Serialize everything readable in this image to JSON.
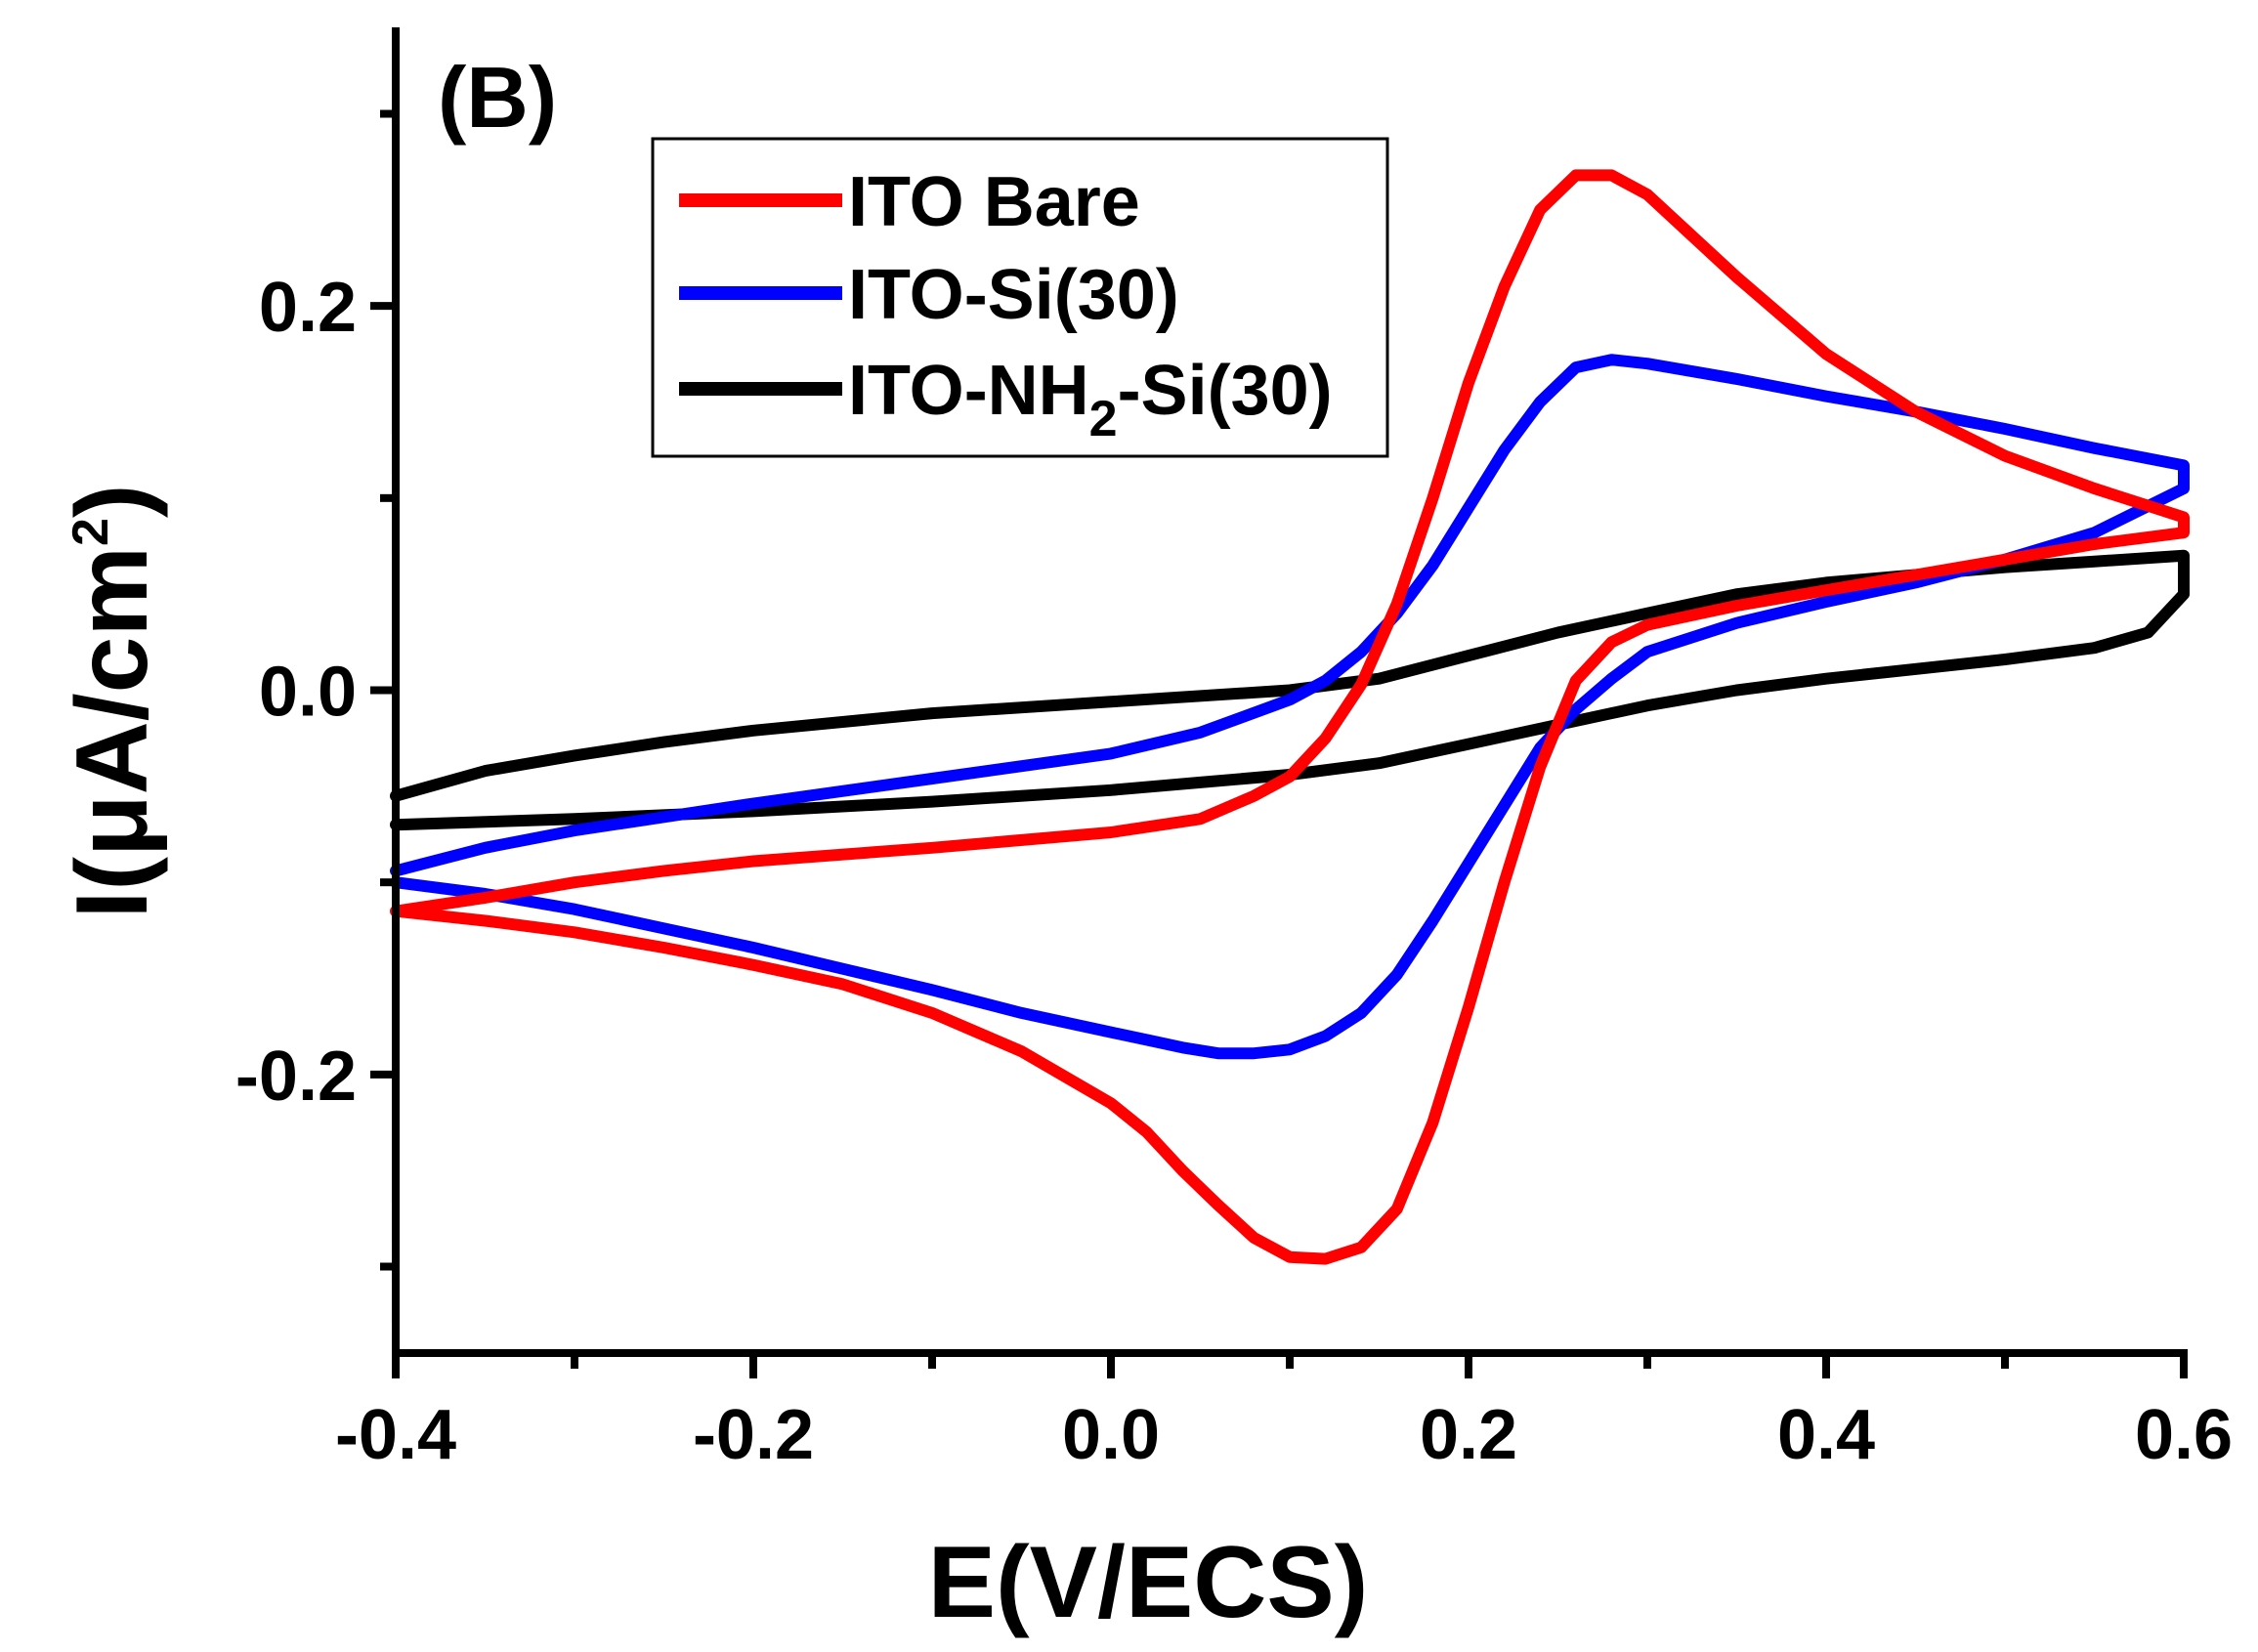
{
  "chart_data": {
    "type": "line",
    "panel_label": "(B)",
    "xlabel": "E(V/ECS)",
    "ylabel": {
      "prefix": "I(μA/cm",
      "superscript": "2",
      "suffix": ")"
    },
    "xlim": [
      -0.4,
      0.6
    ],
    "ylim": [
      -0.345,
      0.345
    ],
    "x_ticks": [
      {
        "value": -0.4,
        "label": "-0.4"
      },
      {
        "value": -0.2,
        "label": "-0.2"
      },
      {
        "value": 0.0,
        "label": "0.0"
      },
      {
        "value": 0.2,
        "label": "0.2"
      },
      {
        "value": 0.4,
        "label": "0.4"
      },
      {
        "value": 0.6,
        "label": "0.6"
      }
    ],
    "x_minor_ticks": [
      -0.3,
      -0.1,
      0.1,
      0.3,
      0.5
    ],
    "y_ticks": [
      {
        "value": -0.2,
        "label": "-0.2"
      },
      {
        "value": 0.0,
        "label": "0.0"
      },
      {
        "value": 0.2,
        "label": "0.2"
      }
    ],
    "y_minor_ticks": [
      -0.3,
      -0.1,
      0.1,
      0.3
    ],
    "grid": false,
    "legend_position": "top-center",
    "series": [
      {
        "name": "ITO Bare",
        "legend_label": {
          "prefix": "ITO Bare",
          "subscript": "",
          "suffix": ""
        },
        "color": "#ff0000",
        "points": [
          [
            -0.4,
            -0.115
          ],
          [
            -0.35,
            -0.108
          ],
          [
            -0.3,
            -0.1
          ],
          [
            -0.25,
            -0.094
          ],
          [
            -0.2,
            -0.089
          ],
          [
            -0.1,
            -0.082
          ],
          [
            0.0,
            -0.074
          ],
          [
            0.05,
            -0.067
          ],
          [
            0.08,
            -0.055
          ],
          [
            0.1,
            -0.045
          ],
          [
            0.12,
            -0.025
          ],
          [
            0.14,
            0.003
          ],
          [
            0.16,
            0.045
          ],
          [
            0.18,
            0.1
          ],
          [
            0.2,
            0.16
          ],
          [
            0.22,
            0.21
          ],
          [
            0.24,
            0.25
          ],
          [
            0.26,
            0.268
          ],
          [
            0.28,
            0.268
          ],
          [
            0.3,
            0.258
          ],
          [
            0.35,
            0.215
          ],
          [
            0.4,
            0.175
          ],
          [
            0.45,
            0.145
          ],
          [
            0.5,
            0.122
          ],
          [
            0.55,
            0.105
          ],
          [
            0.6,
            0.09
          ],
          [
            0.6,
            0.082
          ],
          [
            0.55,
            0.076
          ],
          [
            0.5,
            0.068
          ],
          [
            0.45,
            0.06
          ],
          [
            0.4,
            0.052
          ],
          [
            0.35,
            0.044
          ],
          [
            0.3,
            0.034
          ],
          [
            0.28,
            0.025
          ],
          [
            0.26,
            0.005
          ],
          [
            0.24,
            -0.04
          ],
          [
            0.22,
            -0.1
          ],
          [
            0.2,
            -0.165
          ],
          [
            0.18,
            -0.225
          ],
          [
            0.16,
            -0.27
          ],
          [
            0.14,
            -0.29
          ],
          [
            0.12,
            -0.296
          ],
          [
            0.1,
            -0.295
          ],
          [
            0.08,
            -0.285
          ],
          [
            0.06,
            -0.268
          ],
          [
            0.04,
            -0.25
          ],
          [
            0.02,
            -0.23
          ],
          [
            0.0,
            -0.215
          ],
          [
            -0.05,
            -0.188
          ],
          [
            -0.1,
            -0.168
          ],
          [
            -0.15,
            -0.153
          ],
          [
            -0.2,
            -0.143
          ],
          [
            -0.25,
            -0.134
          ],
          [
            -0.3,
            -0.126
          ],
          [
            -0.35,
            -0.12
          ],
          [
            -0.4,
            -0.115
          ]
        ]
      },
      {
        "name": "ITO-Si(30)",
        "legend_label": {
          "prefix": "ITO-Si(30)",
          "subscript": "",
          "suffix": ""
        },
        "color": "#0000ff",
        "points": [
          [
            -0.4,
            -0.094
          ],
          [
            -0.35,
            -0.082
          ],
          [
            -0.3,
            -0.073
          ],
          [
            -0.25,
            -0.066
          ],
          [
            -0.2,
            -0.059
          ],
          [
            -0.1,
            -0.046
          ],
          [
            0.0,
            -0.033
          ],
          [
            0.05,
            -0.022
          ],
          [
            0.1,
            -0.005
          ],
          [
            0.12,
            0.005
          ],
          [
            0.14,
            0.02
          ],
          [
            0.16,
            0.04
          ],
          [
            0.18,
            0.065
          ],
          [
            0.2,
            0.095
          ],
          [
            0.22,
            0.125
          ],
          [
            0.24,
            0.15
          ],
          [
            0.26,
            0.168
          ],
          [
            0.28,
            0.172
          ],
          [
            0.3,
            0.17
          ],
          [
            0.35,
            0.162
          ],
          [
            0.4,
            0.153
          ],
          [
            0.45,
            0.145
          ],
          [
            0.5,
            0.136
          ],
          [
            0.55,
            0.126
          ],
          [
            0.6,
            0.117
          ],
          [
            0.6,
            0.105
          ],
          [
            0.55,
            0.082
          ],
          [
            0.5,
            0.068
          ],
          [
            0.45,
            0.056
          ],
          [
            0.4,
            0.046
          ],
          [
            0.35,
            0.035
          ],
          [
            0.3,
            0.02
          ],
          [
            0.28,
            0.006
          ],
          [
            0.26,
            -0.01
          ],
          [
            0.24,
            -0.03
          ],
          [
            0.22,
            -0.06
          ],
          [
            0.2,
            -0.09
          ],
          [
            0.18,
            -0.12
          ],
          [
            0.16,
            -0.148
          ],
          [
            0.14,
            -0.168
          ],
          [
            0.12,
            -0.18
          ],
          [
            0.1,
            -0.187
          ],
          [
            0.08,
            -0.189
          ],
          [
            0.06,
            -0.189
          ],
          [
            0.04,
            -0.186
          ],
          [
            0.02,
            -0.182
          ],
          [
            0.0,
            -0.178
          ],
          [
            -0.05,
            -0.168
          ],
          [
            -0.1,
            -0.156
          ],
          [
            -0.15,
            -0.145
          ],
          [
            -0.2,
            -0.134
          ],
          [
            -0.25,
            -0.124
          ],
          [
            -0.3,
            -0.114
          ],
          [
            -0.35,
            -0.106
          ],
          [
            -0.4,
            -0.1
          ]
        ]
      },
      {
        "name": "ITO-NH2-Si(30)",
        "legend_label": {
          "prefix": "ITO-NH",
          "subscript": "2",
          "suffix": "-Si(30)"
        },
        "color": "#000000",
        "points": [
          [
            -0.4,
            -0.055
          ],
          [
            -0.35,
            -0.042
          ],
          [
            -0.3,
            -0.034
          ],
          [
            -0.25,
            -0.027
          ],
          [
            -0.2,
            -0.021
          ],
          [
            -0.1,
            -0.012
          ],
          [
            0.0,
            -0.006
          ],
          [
            0.1,
            0.0
          ],
          [
            0.15,
            0.006
          ],
          [
            0.2,
            0.018
          ],
          [
            0.25,
            0.03
          ],
          [
            0.3,
            0.04
          ],
          [
            0.35,
            0.05
          ],
          [
            0.4,
            0.056
          ],
          [
            0.45,
            0.06
          ],
          [
            0.5,
            0.064
          ],
          [
            0.55,
            0.067
          ],
          [
            0.6,
            0.07
          ],
          [
            0.6,
            0.05
          ],
          [
            0.58,
            0.03
          ],
          [
            0.55,
            0.022
          ],
          [
            0.5,
            0.016
          ],
          [
            0.45,
            0.011
          ],
          [
            0.4,
            0.006
          ],
          [
            0.35,
            0.0
          ],
          [
            0.3,
            -0.008
          ],
          [
            0.25,
            -0.018
          ],
          [
            0.2,
            -0.028
          ],
          [
            0.15,
            -0.038
          ],
          [
            0.1,
            -0.044
          ],
          [
            0.05,
            -0.048
          ],
          [
            0.0,
            -0.052
          ],
          [
            -0.1,
            -0.058
          ],
          [
            -0.2,
            -0.063
          ],
          [
            -0.3,
            -0.067
          ],
          [
            -0.4,
            -0.07
          ]
        ]
      }
    ]
  }
}
